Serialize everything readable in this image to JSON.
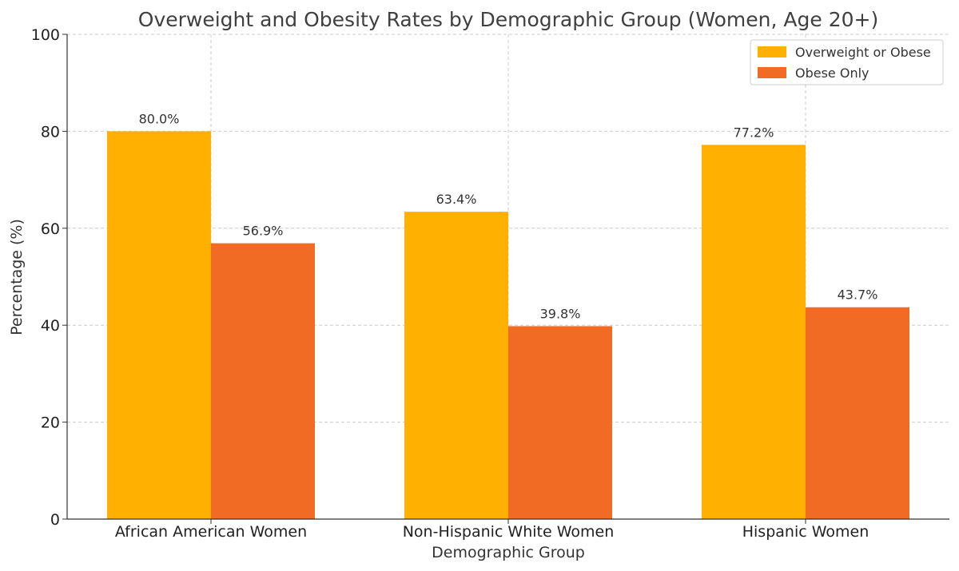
{
  "chart_data": {
    "type": "bar",
    "title": "Overweight and Obesity Rates by Demographic Group (Women, Age 20+)",
    "xlabel": "Demographic Group",
    "ylabel": "Percentage (%)",
    "ylim": [
      0,
      100
    ],
    "yticks": [
      0,
      20,
      40,
      60,
      80,
      100
    ],
    "categories": [
      "African American Women",
      "Non-Hispanic White Women",
      "Hispanic Women"
    ],
    "series": [
      {
        "name": "Overweight or Obese",
        "color": "#FFB000",
        "values": [
          80.0,
          63.4,
          77.2
        ],
        "labels": [
          "80.0%",
          "63.4%",
          "77.2%"
        ]
      },
      {
        "name": "Obese Only",
        "color": "#F26B24",
        "values": [
          56.9,
          39.8,
          43.7
        ],
        "labels": [
          "56.9%",
          "39.8%",
          "43.7%"
        ]
      }
    ],
    "grid": true,
    "legend_position": "top-right"
  }
}
